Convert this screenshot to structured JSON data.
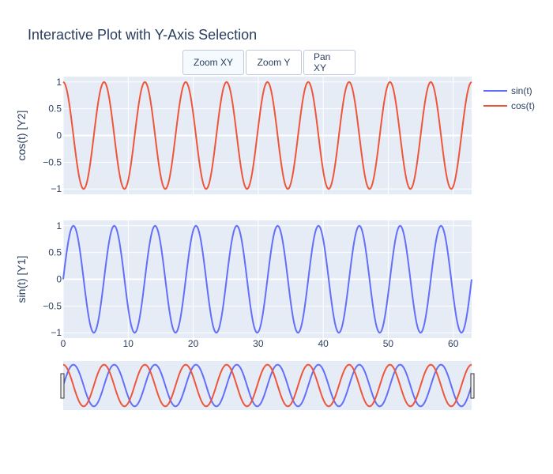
{
  "title": "Interactive Plot with Y-Axis Selection",
  "buttons": [
    {
      "label": "Zoom XY",
      "active": true
    },
    {
      "label": "Zoom Y",
      "active": false
    },
    {
      "label": "Pan XY",
      "active": false
    }
  ],
  "colors": {
    "plot_bg": "#e5ecf6",
    "grid": "#ffffff",
    "sin": "#636efa",
    "cos": "#ef553b",
    "text": "#2a3f5f"
  },
  "chart_data": {
    "type": "line",
    "x_range": [
      0,
      62.83
    ],
    "x_samples": 400,
    "x_ticks": [
      0,
      10,
      20,
      30,
      40,
      50,
      60
    ],
    "x_tick_labels": [
      "0",
      "10",
      "20",
      "30",
      "40",
      "50",
      "60"
    ],
    "y_ticks": [
      -1,
      -0.5,
      0,
      0.5,
      1
    ],
    "y_tick_labels": [
      "−1",
      "−0.5",
      "0",
      "0.5",
      "1"
    ],
    "y_range": [
      -1.1,
      1.1
    ],
    "series": [
      {
        "name": "sin(t)",
        "function": "sin",
        "axis": "y1"
      },
      {
        "name": "cos(t)",
        "function": "cos",
        "axis": "y2"
      }
    ],
    "y1_label": "sin(t) [Y1]",
    "y2_label": "cos(t) [Y2]",
    "legend_position": "top-right",
    "rangeslider": true
  }
}
